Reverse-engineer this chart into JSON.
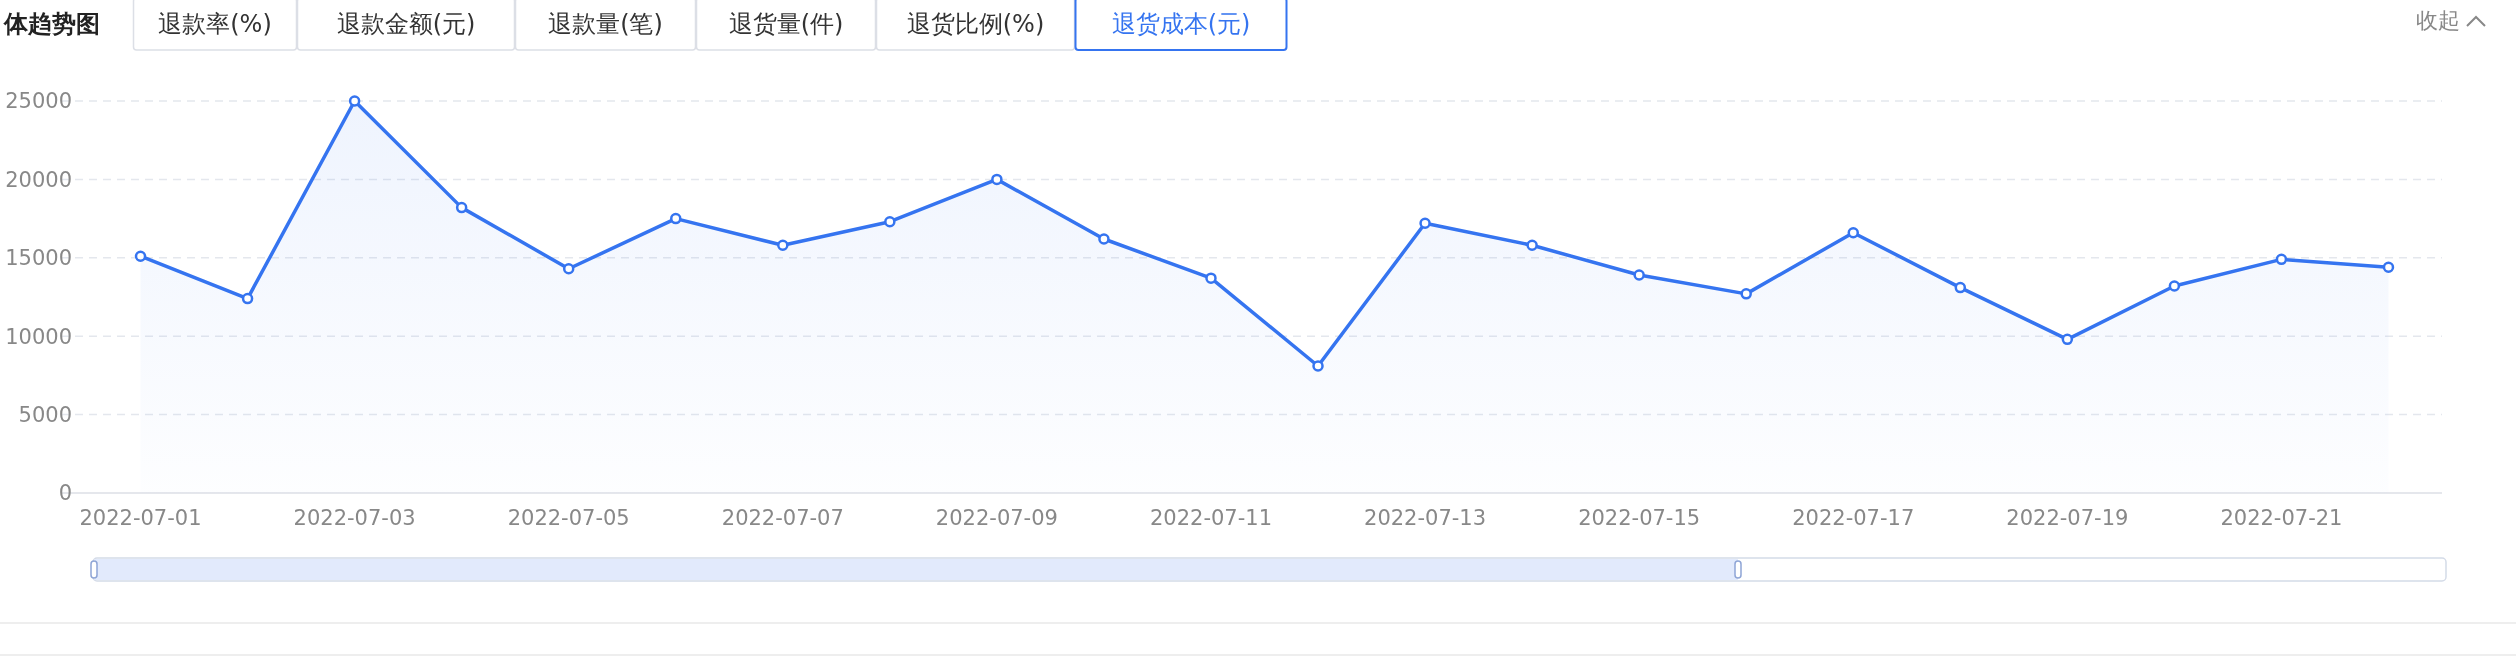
{
  "chart_data": {
    "type": "area",
    "title": "体趋势图",
    "annotations": [
      "退款率(%)",
      "退款金额(元)",
      "退款量(笔)",
      "退货量(件)",
      "退货比例(%)",
      "退货成本(元)",
      "收起"
    ],
    "categories": [
      "2022-07-01",
      null,
      "2022-07-03",
      null,
      "2022-07-05",
      null,
      "2022-07-07",
      null,
      "2022-07-09",
      null,
      "2022-07-11",
      null,
      "2022-07-13",
      null,
      "2022-07-15",
      null,
      "2022-07-17",
      null,
      "2022-07-19",
      null,
      "2022-07-21",
      null
    ],
    "series": [
      {
        "color": "#3574f0",
        "values": [
          15100,
          12400,
          25000,
          18200,
          14300,
          17500,
          15800,
          17300,
          20000,
          16200,
          13700,
          8100,
          17200,
          15800,
          13900,
          12700,
          16600,
          13100,
          9800,
          13200,
          14900,
          14400
        ]
      }
    ],
    "ylim": [
      0,
      25000
    ],
    "yticks": [
      0,
      5000,
      10000,
      15000,
      20000,
      25000
    ],
    "grid": "y",
    "marker": "circle"
  }
}
